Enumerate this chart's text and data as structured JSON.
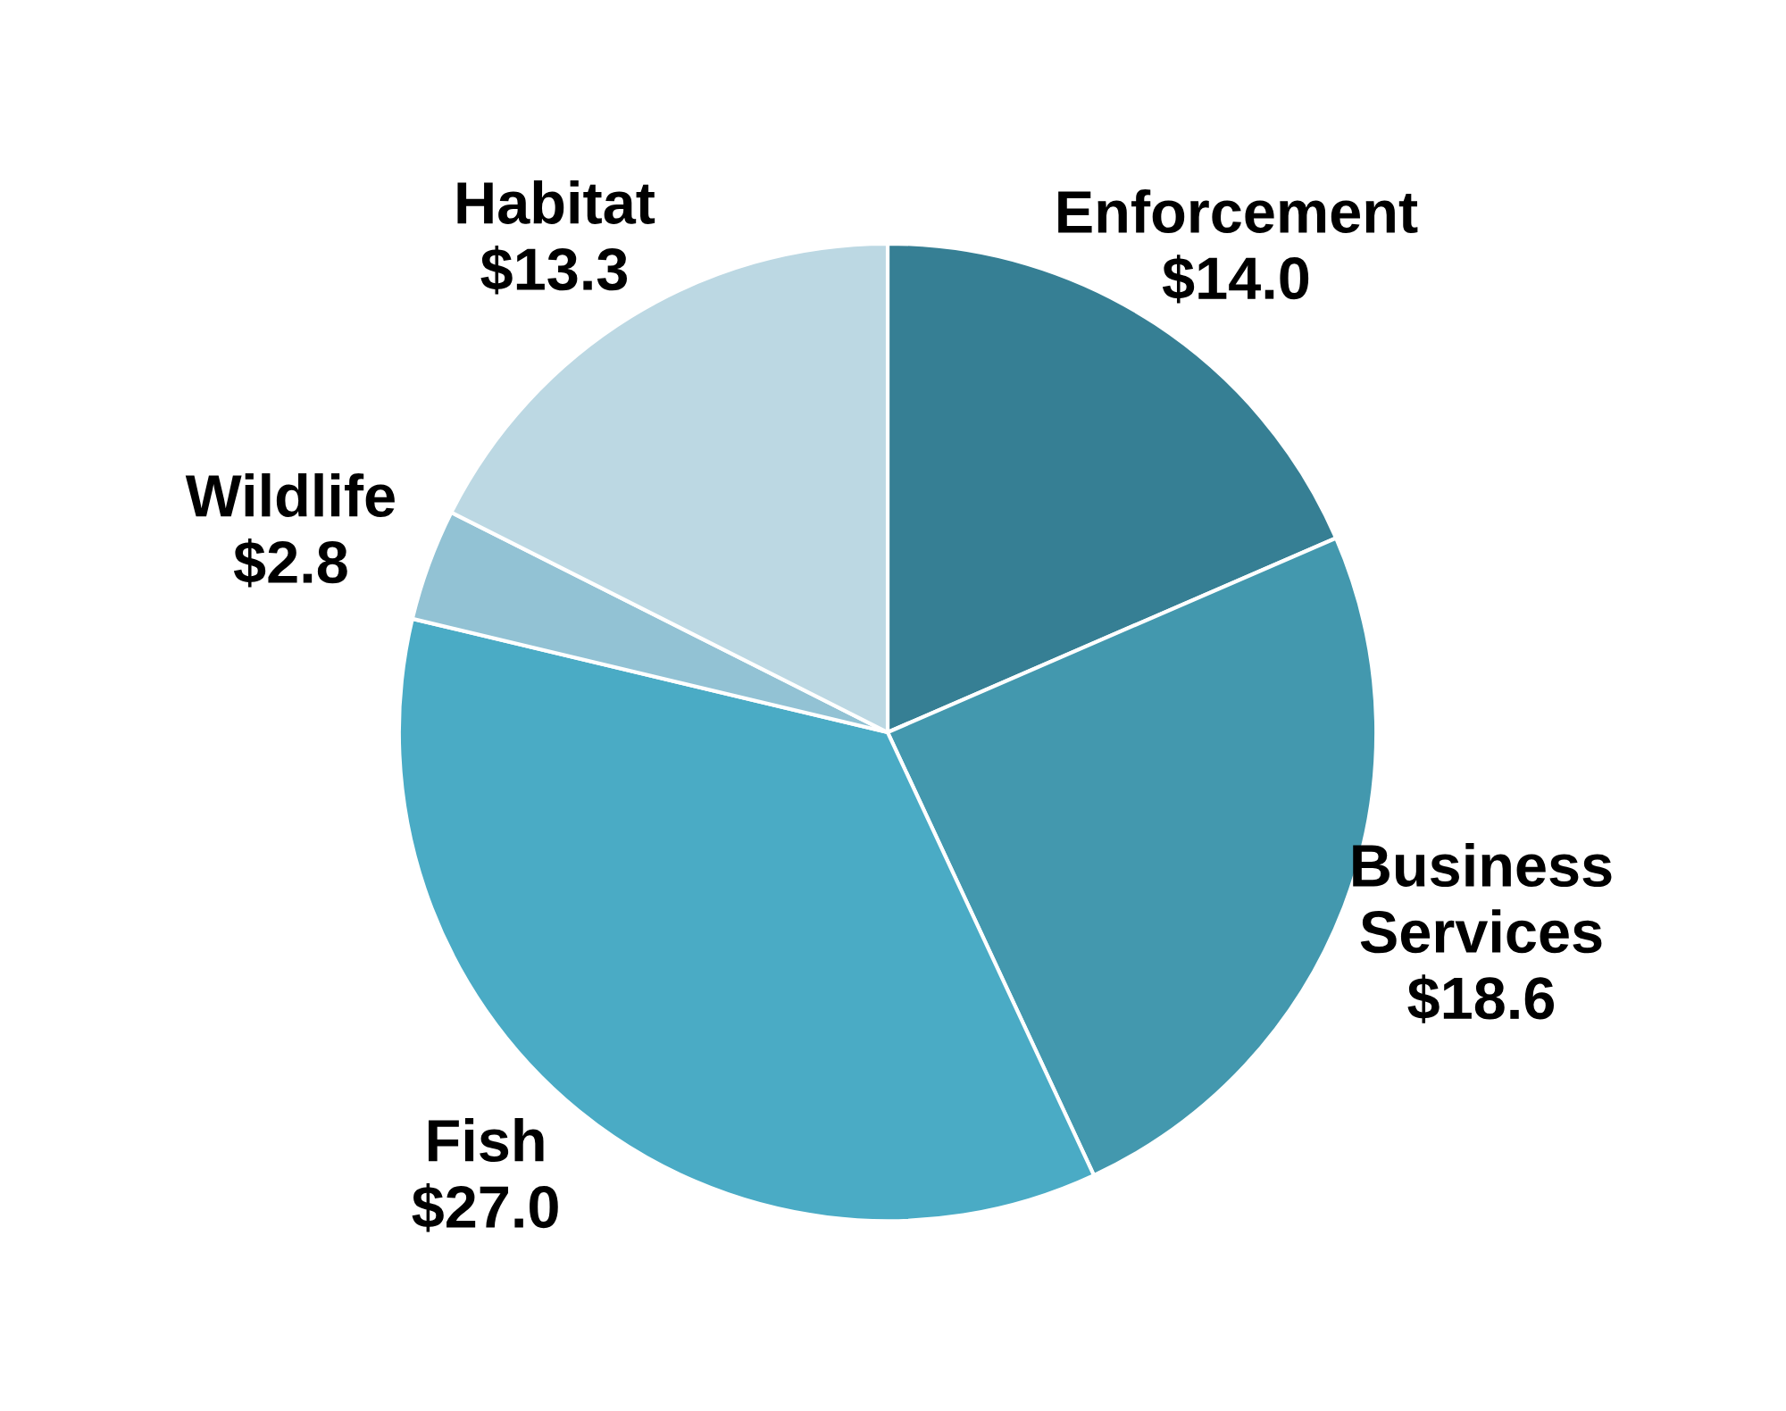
{
  "chart_data": {
    "type": "pie",
    "categories": [
      "Enforcement",
      "Business Services",
      "Fish",
      "Wildlife",
      "Habitat"
    ],
    "values": [
      14.0,
      18.6,
      27.0,
      2.8,
      13.3
    ],
    "value_labels": [
      "$14.0",
      "$18.6",
      "$27.0",
      "$2.8",
      "$13.3"
    ],
    "colors": [
      "#367f94",
      "#4398ae",
      "#4aabc5",
      "#92c2d4",
      "#bcd8e3"
    ]
  }
}
